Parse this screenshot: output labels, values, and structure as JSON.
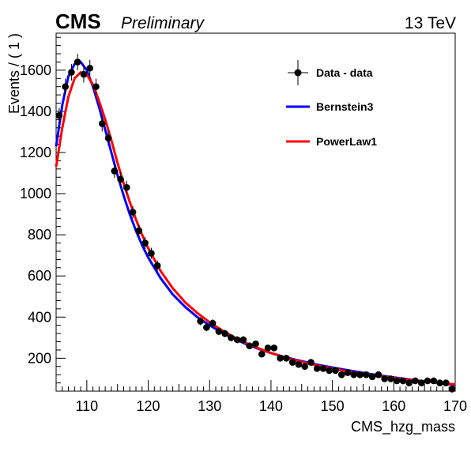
{
  "header": {
    "cms": "CMS",
    "preliminary": "Preliminary",
    "energy": "13 TeV"
  },
  "chart_data": {
    "type": "scatter",
    "xlabel": "CMS_hzg_mass",
    "ylabel": "Events / ( 1 )",
    "xlim": [
      105,
      170
    ],
    "ylim": [
      40,
      1780
    ],
    "xticks": [
      110,
      120,
      130,
      140,
      150,
      160,
      170
    ],
    "yticks": [
      200,
      400,
      600,
      800,
      1000,
      1200,
      1400,
      1600
    ],
    "legend": [
      {
        "label": "Data - data",
        "kind": "marker",
        "color": "#000000"
      },
      {
        "label": "Bernstein3",
        "kind": "line",
        "color": "#0000ff"
      },
      {
        "label": "PowerLaw1",
        "kind": "line",
        "color": "#ff0000"
      }
    ],
    "legend_position": "top-right",
    "data": {
      "name": "Data - data",
      "x": [
        105.5,
        106.5,
        107.5,
        108.5,
        109.5,
        110.5,
        111.5,
        112.5,
        113.5,
        114.5,
        115.5,
        116.5,
        117.5,
        118.5,
        119.5,
        120.5,
        121.5,
        128.5,
        129.5,
        130.5,
        131.5,
        132.5,
        133.5,
        134.5,
        135.5,
        136.5,
        137.5,
        138.5,
        139.5,
        140.5,
        141.5,
        142.5,
        143.5,
        144.5,
        145.5,
        146.5,
        147.5,
        148.5,
        149.5,
        150.5,
        151.5,
        152.5,
        153.5,
        154.5,
        155.5,
        156.5,
        157.5,
        158.5,
        159.5,
        160.5,
        161.5,
        162.5,
        163.5,
        164.5,
        165.5,
        166.5,
        167.5,
        168.5,
        169.5
      ],
      "y": [
        1380,
        1520,
        1590,
        1640,
        1580,
        1610,
        1520,
        1340,
        1270,
        1110,
        1070,
        1030,
        910,
        820,
        760,
        710,
        650,
        380,
        350,
        370,
        330,
        320,
        300,
        290,
        290,
        260,
        270,
        220,
        250,
        250,
        200,
        200,
        180,
        170,
        160,
        180,
        150,
        150,
        140,
        140,
        120,
        130,
        120,
        120,
        120,
        110,
        120,
        100,
        100,
        90,
        90,
        80,
        90,
        80,
        90,
        90,
        80,
        80,
        50
      ],
      "err": [
        37,
        39,
        40,
        40,
        40,
        40,
        39,
        37,
        36,
        33,
        33,
        32,
        30,
        29,
        28,
        27,
        25,
        19,
        19,
        19,
        18,
        18,
        17,
        17,
        17,
        16,
        16,
        15,
        16,
        16,
        14,
        14,
        13,
        13,
        13,
        13,
        12,
        12,
        12,
        12,
        11,
        11,
        11,
        11,
        11,
        10,
        11,
        10,
        10,
        9,
        9,
        9,
        9,
        9,
        9,
        9,
        9,
        9,
        7
      ]
    },
    "series": [
      {
        "name": "Bernstein3",
        "color": "#0000ff",
        "x": [
          105,
          106,
          107,
          108,
          109,
          110,
          111,
          112,
          113,
          114,
          115,
          116,
          117,
          118,
          119,
          120,
          122,
          124,
          126,
          128,
          130,
          132,
          134,
          136,
          138,
          140,
          142,
          144,
          146,
          148,
          150,
          152,
          154,
          156,
          158,
          160,
          162,
          164,
          166,
          168,
          170
        ],
        "y": [
          1230,
          1430,
          1570,
          1630,
          1640,
          1600,
          1520,
          1420,
          1310,
          1200,
          1090,
          990,
          900,
          820,
          750,
          690,
          590,
          510,
          450,
          400,
          360,
          325,
          295,
          268,
          245,
          225,
          208,
          193,
          179,
          166,
          155,
          144,
          134,
          124,
          115,
          107,
          99,
          91,
          84,
          77,
          70
        ]
      },
      {
        "name": "PowerLaw1",
        "color": "#ff0000",
        "x": [
          105,
          106,
          107,
          108,
          109,
          110,
          111,
          112,
          113,
          114,
          115,
          116,
          117,
          118,
          119,
          120,
          122,
          124,
          126,
          128,
          130,
          132,
          134,
          136,
          138,
          140,
          142,
          144,
          146,
          148,
          150,
          152,
          154,
          156,
          158,
          160,
          162,
          164,
          166,
          168,
          170
        ],
        "y": [
          1130,
          1320,
          1470,
          1560,
          1590,
          1580,
          1530,
          1450,
          1360,
          1260,
          1150,
          1050,
          960,
          875,
          800,
          735,
          625,
          540,
          472,
          420,
          375,
          336,
          302,
          273,
          248,
          226,
          207,
          190,
          175,
          162,
          150,
          139,
          129,
          120,
          112,
          104,
          97,
          90,
          84,
          78,
          73
        ]
      }
    ]
  }
}
